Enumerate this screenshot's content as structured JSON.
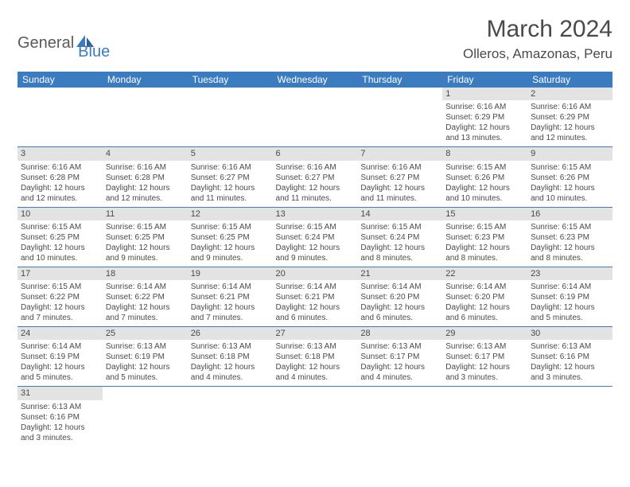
{
  "logo": {
    "part1": "General",
    "part2": "Blue"
  },
  "title": "March 2024",
  "location": "Olleros, Amazonas, Peru",
  "colors": {
    "header_bg": "#3b7bbf",
    "daybar_bg": "#e3e3e3",
    "text": "#4a4a4a",
    "border": "#3b7bbf"
  },
  "weekdays": [
    "Sunday",
    "Monday",
    "Tuesday",
    "Wednesday",
    "Thursday",
    "Friday",
    "Saturday"
  ],
  "weeks": [
    [
      null,
      null,
      null,
      null,
      null,
      {
        "n": "1",
        "sr": "Sunrise: 6:16 AM",
        "ss": "Sunset: 6:29 PM",
        "dl1": "Daylight: 12 hours",
        "dl2": "and 13 minutes."
      },
      {
        "n": "2",
        "sr": "Sunrise: 6:16 AM",
        "ss": "Sunset: 6:29 PM",
        "dl1": "Daylight: 12 hours",
        "dl2": "and 12 minutes."
      }
    ],
    [
      {
        "n": "3",
        "sr": "Sunrise: 6:16 AM",
        "ss": "Sunset: 6:28 PM",
        "dl1": "Daylight: 12 hours",
        "dl2": "and 12 minutes."
      },
      {
        "n": "4",
        "sr": "Sunrise: 6:16 AM",
        "ss": "Sunset: 6:28 PM",
        "dl1": "Daylight: 12 hours",
        "dl2": "and 12 minutes."
      },
      {
        "n": "5",
        "sr": "Sunrise: 6:16 AM",
        "ss": "Sunset: 6:27 PM",
        "dl1": "Daylight: 12 hours",
        "dl2": "and 11 minutes."
      },
      {
        "n": "6",
        "sr": "Sunrise: 6:16 AM",
        "ss": "Sunset: 6:27 PM",
        "dl1": "Daylight: 12 hours",
        "dl2": "and 11 minutes."
      },
      {
        "n": "7",
        "sr": "Sunrise: 6:16 AM",
        "ss": "Sunset: 6:27 PM",
        "dl1": "Daylight: 12 hours",
        "dl2": "and 11 minutes."
      },
      {
        "n": "8",
        "sr": "Sunrise: 6:15 AM",
        "ss": "Sunset: 6:26 PM",
        "dl1": "Daylight: 12 hours",
        "dl2": "and 10 minutes."
      },
      {
        "n": "9",
        "sr": "Sunrise: 6:15 AM",
        "ss": "Sunset: 6:26 PM",
        "dl1": "Daylight: 12 hours",
        "dl2": "and 10 minutes."
      }
    ],
    [
      {
        "n": "10",
        "sr": "Sunrise: 6:15 AM",
        "ss": "Sunset: 6:25 PM",
        "dl1": "Daylight: 12 hours",
        "dl2": "and 10 minutes."
      },
      {
        "n": "11",
        "sr": "Sunrise: 6:15 AM",
        "ss": "Sunset: 6:25 PM",
        "dl1": "Daylight: 12 hours",
        "dl2": "and 9 minutes."
      },
      {
        "n": "12",
        "sr": "Sunrise: 6:15 AM",
        "ss": "Sunset: 6:25 PM",
        "dl1": "Daylight: 12 hours",
        "dl2": "and 9 minutes."
      },
      {
        "n": "13",
        "sr": "Sunrise: 6:15 AM",
        "ss": "Sunset: 6:24 PM",
        "dl1": "Daylight: 12 hours",
        "dl2": "and 9 minutes."
      },
      {
        "n": "14",
        "sr": "Sunrise: 6:15 AM",
        "ss": "Sunset: 6:24 PM",
        "dl1": "Daylight: 12 hours",
        "dl2": "and 8 minutes."
      },
      {
        "n": "15",
        "sr": "Sunrise: 6:15 AM",
        "ss": "Sunset: 6:23 PM",
        "dl1": "Daylight: 12 hours",
        "dl2": "and 8 minutes."
      },
      {
        "n": "16",
        "sr": "Sunrise: 6:15 AM",
        "ss": "Sunset: 6:23 PM",
        "dl1": "Daylight: 12 hours",
        "dl2": "and 8 minutes."
      }
    ],
    [
      {
        "n": "17",
        "sr": "Sunrise: 6:15 AM",
        "ss": "Sunset: 6:22 PM",
        "dl1": "Daylight: 12 hours",
        "dl2": "and 7 minutes."
      },
      {
        "n": "18",
        "sr": "Sunrise: 6:14 AM",
        "ss": "Sunset: 6:22 PM",
        "dl1": "Daylight: 12 hours",
        "dl2": "and 7 minutes."
      },
      {
        "n": "19",
        "sr": "Sunrise: 6:14 AM",
        "ss": "Sunset: 6:21 PM",
        "dl1": "Daylight: 12 hours",
        "dl2": "and 7 minutes."
      },
      {
        "n": "20",
        "sr": "Sunrise: 6:14 AM",
        "ss": "Sunset: 6:21 PM",
        "dl1": "Daylight: 12 hours",
        "dl2": "and 6 minutes."
      },
      {
        "n": "21",
        "sr": "Sunrise: 6:14 AM",
        "ss": "Sunset: 6:20 PM",
        "dl1": "Daylight: 12 hours",
        "dl2": "and 6 minutes."
      },
      {
        "n": "22",
        "sr": "Sunrise: 6:14 AM",
        "ss": "Sunset: 6:20 PM",
        "dl1": "Daylight: 12 hours",
        "dl2": "and 6 minutes."
      },
      {
        "n": "23",
        "sr": "Sunrise: 6:14 AM",
        "ss": "Sunset: 6:19 PM",
        "dl1": "Daylight: 12 hours",
        "dl2": "and 5 minutes."
      }
    ],
    [
      {
        "n": "24",
        "sr": "Sunrise: 6:14 AM",
        "ss": "Sunset: 6:19 PM",
        "dl1": "Daylight: 12 hours",
        "dl2": "and 5 minutes."
      },
      {
        "n": "25",
        "sr": "Sunrise: 6:13 AM",
        "ss": "Sunset: 6:19 PM",
        "dl1": "Daylight: 12 hours",
        "dl2": "and 5 minutes."
      },
      {
        "n": "26",
        "sr": "Sunrise: 6:13 AM",
        "ss": "Sunset: 6:18 PM",
        "dl1": "Daylight: 12 hours",
        "dl2": "and 4 minutes."
      },
      {
        "n": "27",
        "sr": "Sunrise: 6:13 AM",
        "ss": "Sunset: 6:18 PM",
        "dl1": "Daylight: 12 hours",
        "dl2": "and 4 minutes."
      },
      {
        "n": "28",
        "sr": "Sunrise: 6:13 AM",
        "ss": "Sunset: 6:17 PM",
        "dl1": "Daylight: 12 hours",
        "dl2": "and 4 minutes."
      },
      {
        "n": "29",
        "sr": "Sunrise: 6:13 AM",
        "ss": "Sunset: 6:17 PM",
        "dl1": "Daylight: 12 hours",
        "dl2": "and 3 minutes."
      },
      {
        "n": "30",
        "sr": "Sunrise: 6:13 AM",
        "ss": "Sunset: 6:16 PM",
        "dl1": "Daylight: 12 hours",
        "dl2": "and 3 minutes."
      }
    ],
    [
      {
        "n": "31",
        "sr": "Sunrise: 6:13 AM",
        "ss": "Sunset: 6:16 PM",
        "dl1": "Daylight: 12 hours",
        "dl2": "and 3 minutes."
      },
      null,
      null,
      null,
      null,
      null,
      null
    ]
  ]
}
